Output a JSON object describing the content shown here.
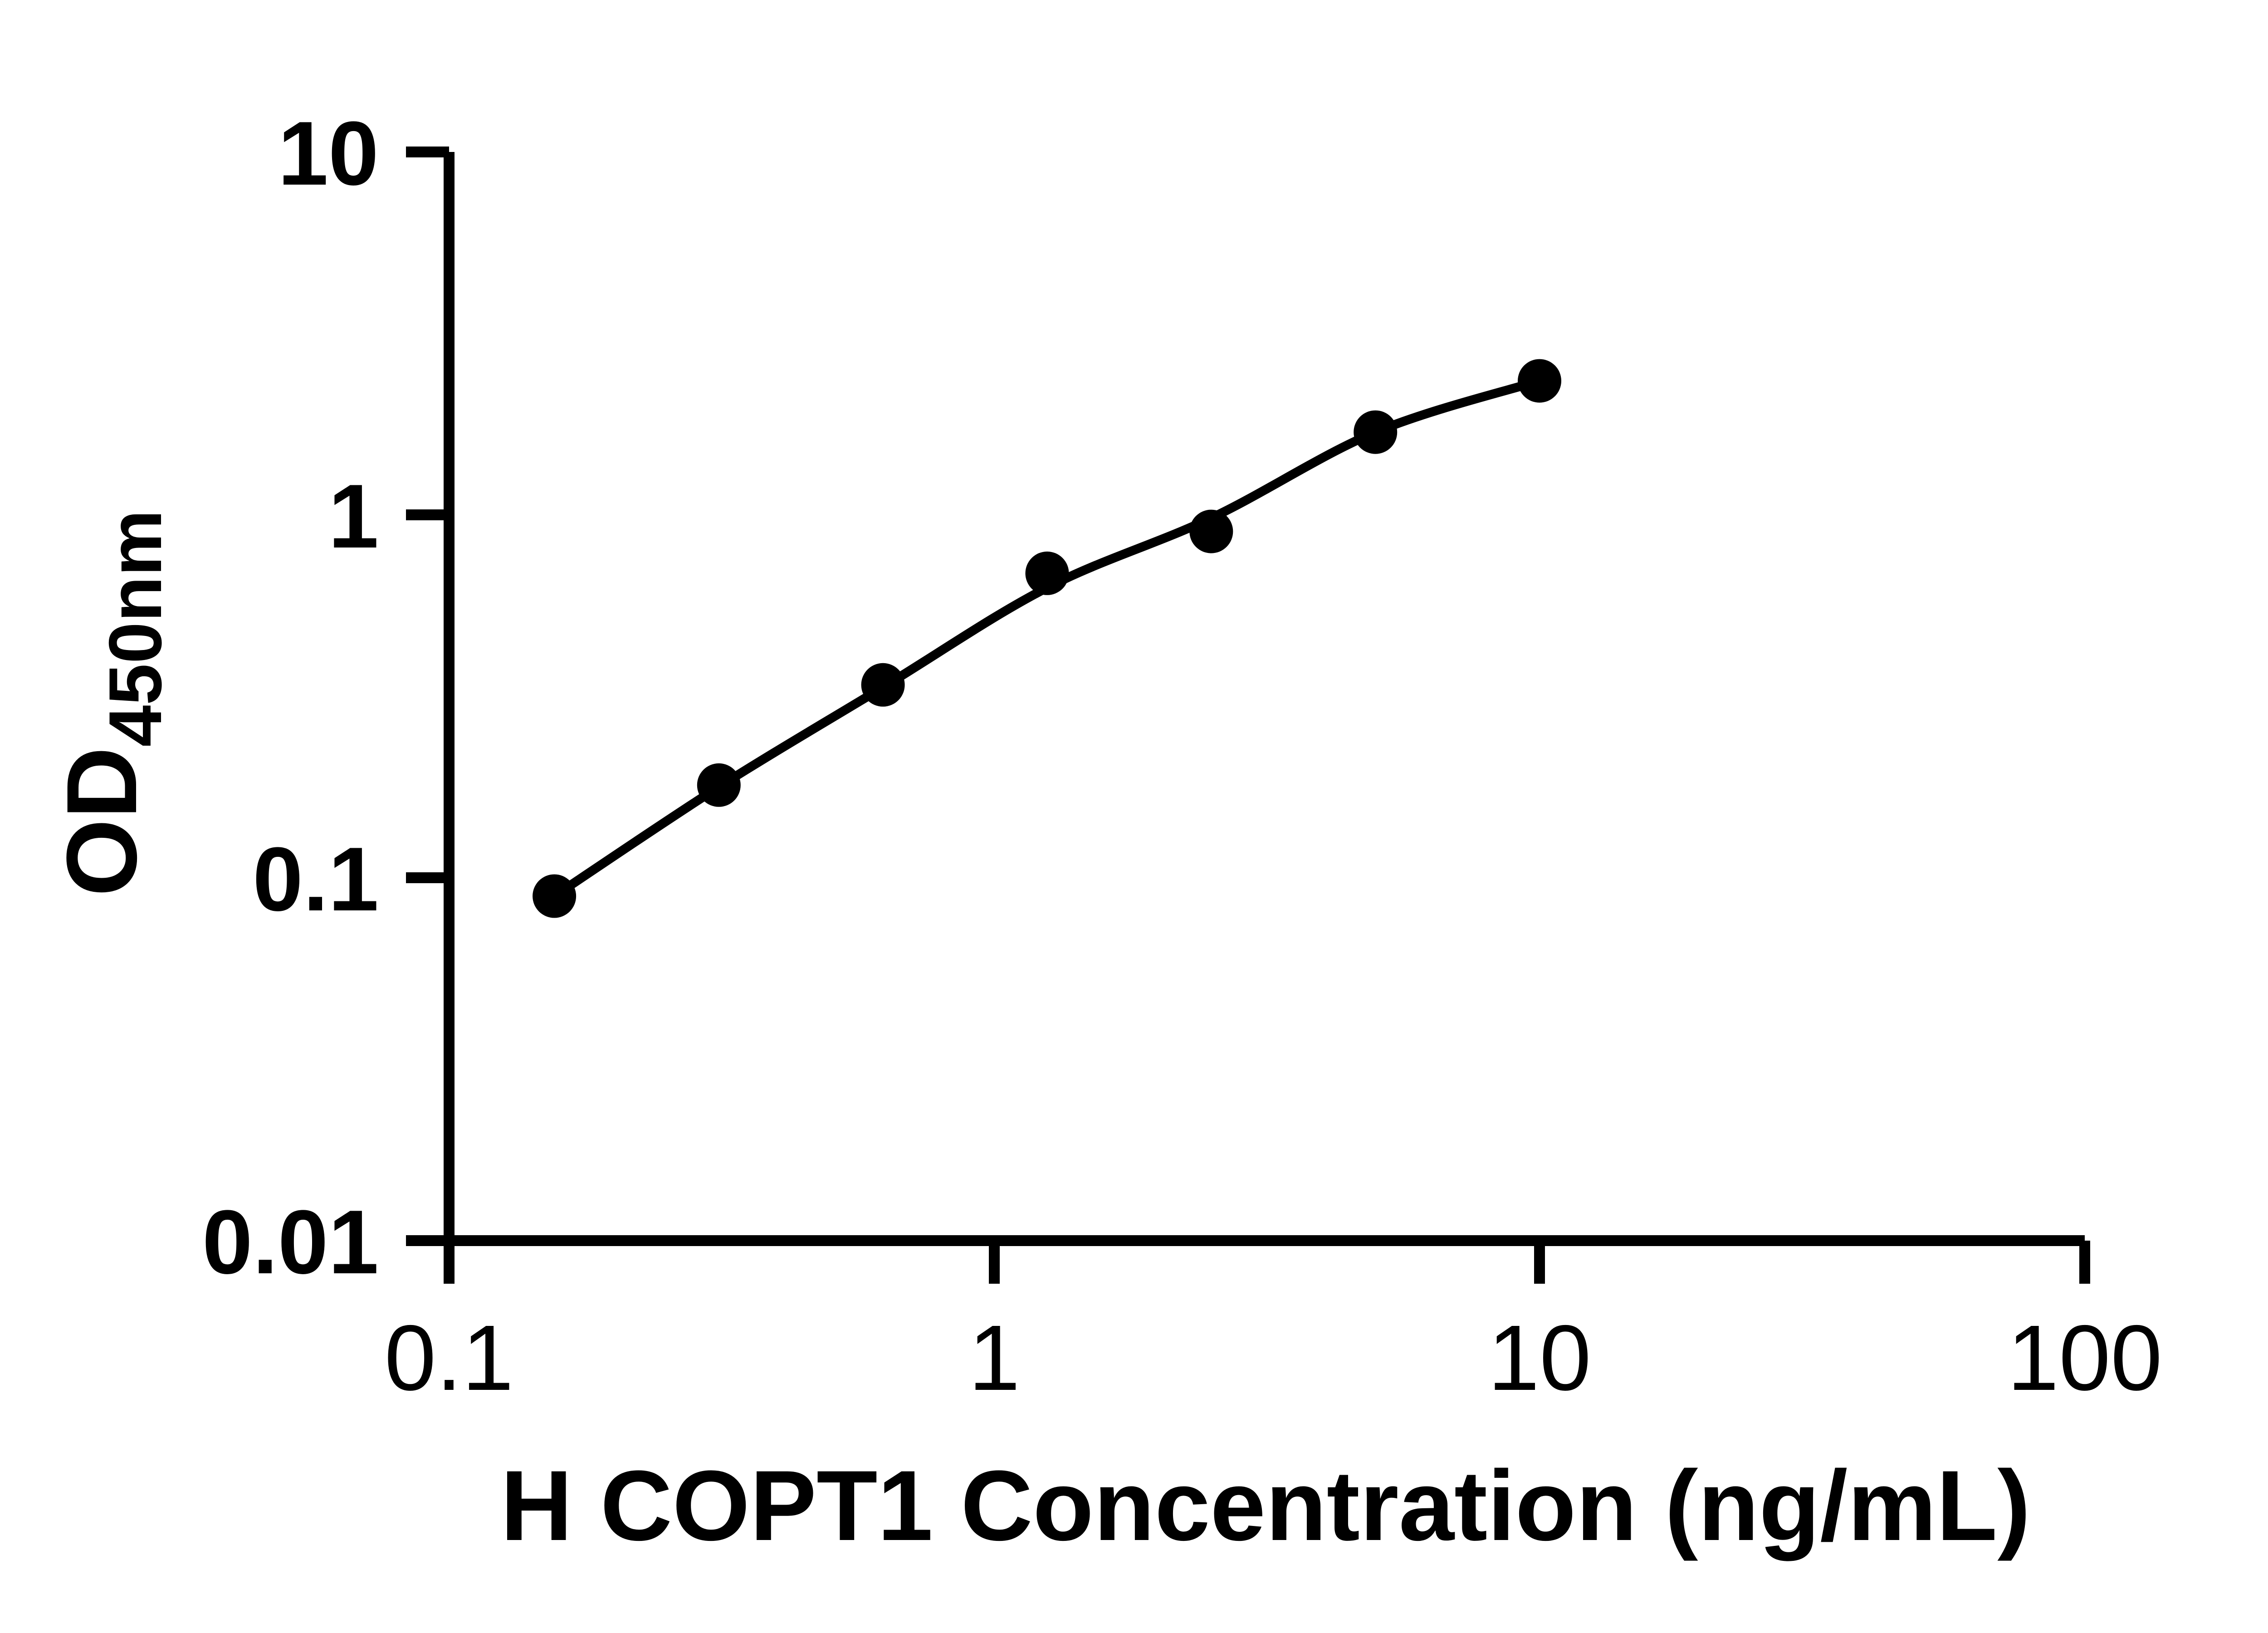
{
  "figure": {
    "background": "#ffffff",
    "ink_color": "#000000"
  },
  "chart_data": {
    "type": "scatter",
    "title": "",
    "xlabel": "H COPT1 Concentration (ng/mL)",
    "ylabel_main": "OD",
    "ylabel_sub": "450nm",
    "x_scale": "log",
    "y_scale": "log",
    "xlim": [
      0.1,
      100
    ],
    "ylim": [
      0.01,
      10
    ],
    "x_ticks": {
      "values": [
        0.1,
        1,
        10,
        100
      ],
      "labels": [
        "0.1",
        "1",
        "10",
        "100"
      ]
    },
    "y_ticks": {
      "values": [
        0.01,
        0.1,
        1,
        10
      ],
      "labels": [
        "0.01",
        "0.1",
        "1",
        "10"
      ]
    },
    "grid": false,
    "legend": "none",
    "series": [
      {
        "name": "standard-curve-points",
        "type": "scatter",
        "marker": "filled-circle",
        "color": "#000000",
        "x": [
          0.156,
          0.3125,
          0.625,
          1.25,
          2.5,
          5,
          10
        ],
        "y": [
          0.089,
          0.18,
          0.34,
          0.69,
          0.9,
          1.69,
          2.34
        ]
      },
      {
        "name": "fitted-curve",
        "type": "line",
        "color": "#000000",
        "x": [
          0.156,
          0.3125,
          0.625,
          1.25,
          2.5,
          5,
          10
        ],
        "y": [
          0.089,
          0.178,
          0.335,
          0.63,
          0.98,
          1.69,
          2.34
        ]
      }
    ]
  }
}
